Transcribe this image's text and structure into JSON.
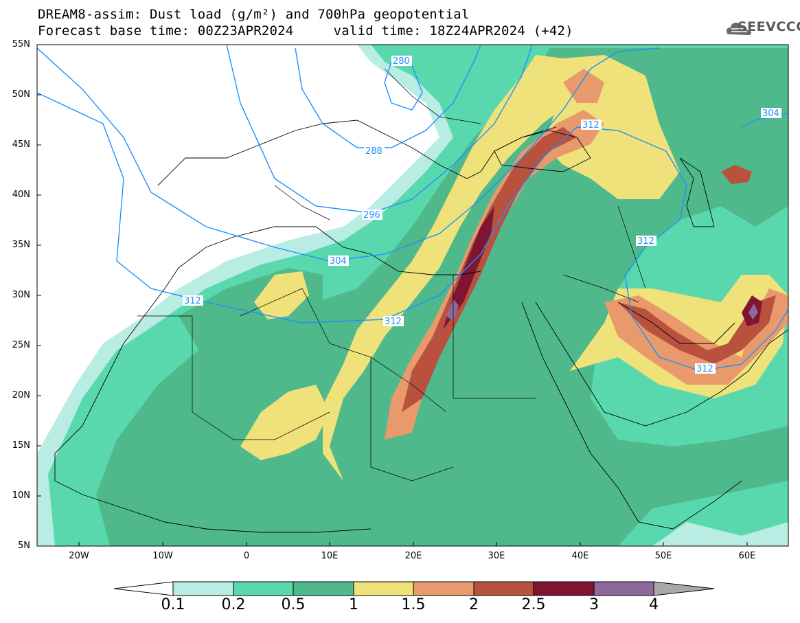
{
  "title": {
    "line1": "DREAM8-assim: Dust load (g/m²) and 700hPa geopotential",
    "line2": "Forecast base time: 00Z23APR2024     valid time: 18Z24APR2024 (+42)"
  },
  "brand": {
    "text": "SEEVCCC",
    "icon": "cloud-logo-icon"
  },
  "axes": {
    "lat_labels": [
      "55N",
      "50N",
      "45N",
      "40N",
      "35N",
      "30N",
      "25N",
      "20N",
      "15N",
      "10N",
      "5N"
    ],
    "lon_labels": [
      "20W",
      "10W",
      "0",
      "10E",
      "20E",
      "30E",
      "40E",
      "50E",
      "60E"
    ],
    "lat_range": [
      5,
      55
    ],
    "lon_range": [
      -25,
      65
    ]
  },
  "colorbar": {
    "labels": [
      "0.1",
      "0.2",
      "0.5",
      "1",
      "1.5",
      "2",
      "2.5",
      "3",
      "4"
    ],
    "colors": [
      "#b9ede3",
      "#5ad8ad",
      "#4fb98c",
      "#f0e27a",
      "#e89a6c",
      "#b8523e",
      "#7e1632",
      "#8e6a9c"
    ],
    "under_color": "#ffffff",
    "over_color": "#a9a9a9"
  },
  "isolines": {
    "labels": [
      "280",
      "288",
      "296",
      "304",
      "312",
      "312",
      "312",
      "312",
      "304",
      "312"
    ],
    "color": "#1e90ff"
  },
  "fill_colors": {
    "low": "#b9ede3",
    "light": "#5ad8ad",
    "mid": "#4fb98c",
    "yellow": "#f0e27a",
    "orange": "#e89a6c",
    "rust": "#b8523e",
    "dark": "#7e1632",
    "purple": "#8e6a9c"
  }
}
